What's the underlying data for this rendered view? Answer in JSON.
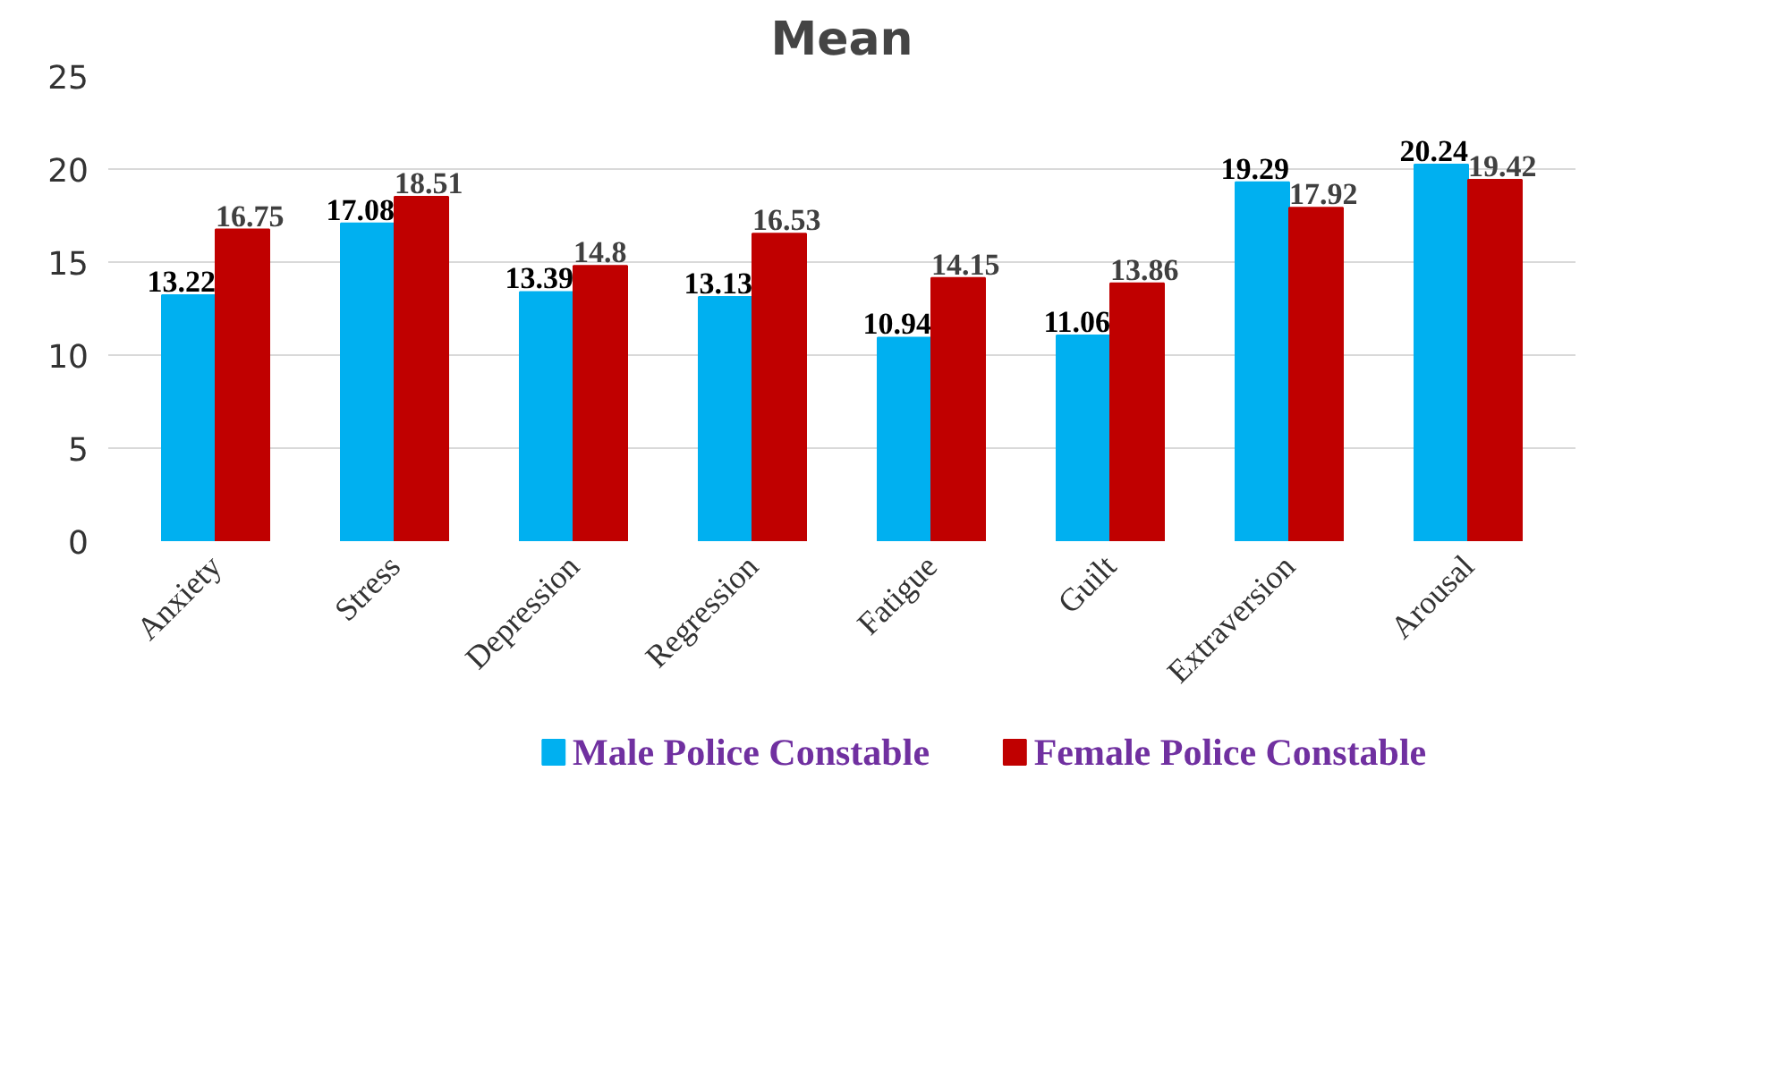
{
  "chart_data": {
    "type": "bar",
    "title": "Mean",
    "categories": [
      "Anxiety",
      "Stress",
      "Depression",
      "Regression",
      "Fatigue",
      "Guilt",
      "Extraversion",
      "Arousal"
    ],
    "series": [
      {
        "name": "Male Police Constable",
        "color": "#00b0f0",
        "values": [
          13.22,
          17.08,
          13.39,
          13.13,
          10.94,
          11.06,
          19.29,
          20.24
        ]
      },
      {
        "name": "Female Police Constable",
        "color": "#c00000",
        "values": [
          16.75,
          18.51,
          14.8,
          16.53,
          14.15,
          13.86,
          17.92,
          19.42
        ]
      }
    ],
    "ylim": [
      0,
      25
    ],
    "yticks": [
      0,
      5,
      10,
      15,
      20,
      25
    ],
    "grid": "y",
    "legend": "bottom",
    "data_labels": true
  }
}
